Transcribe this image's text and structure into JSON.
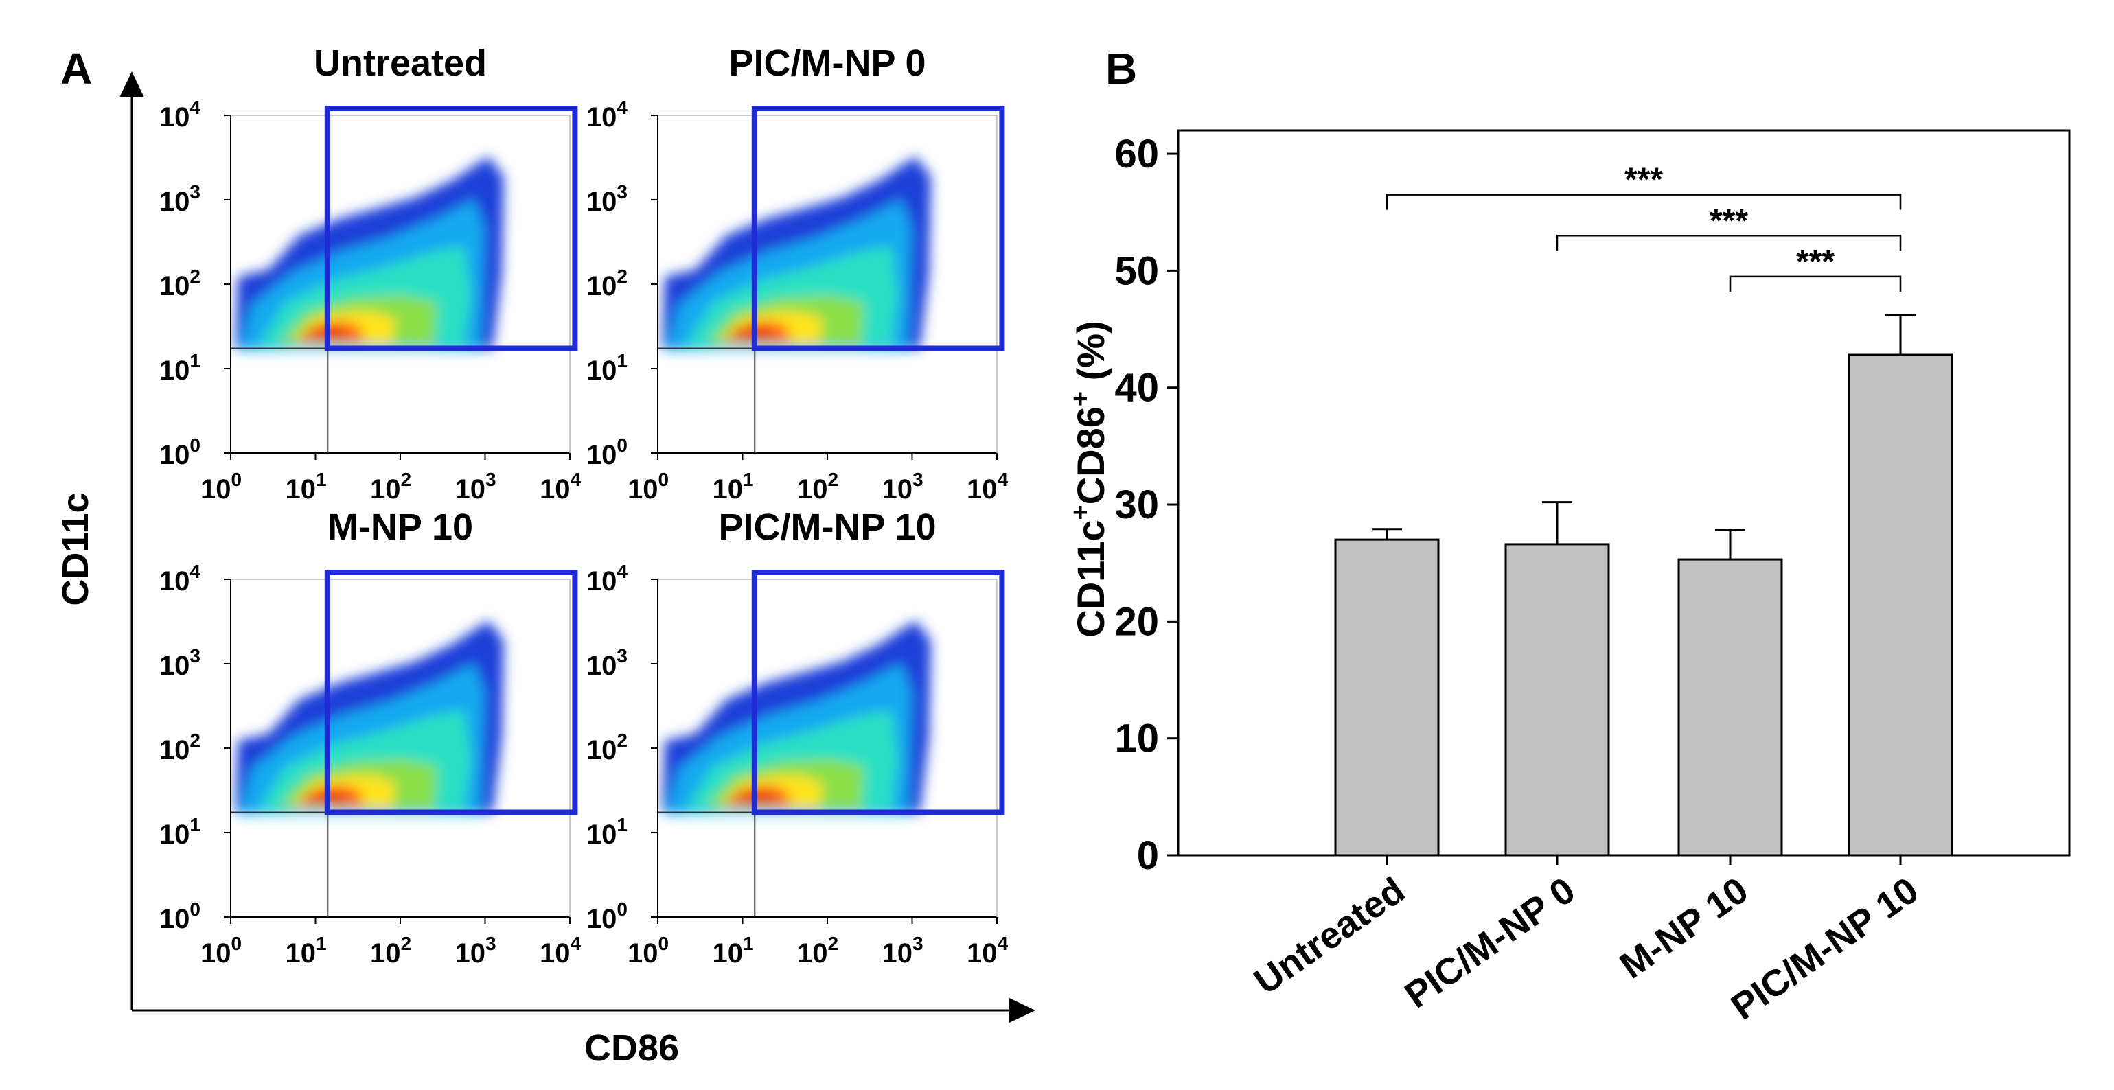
{
  "panel_labels": {
    "a": "A",
    "b": "B"
  },
  "panel_a": {
    "xlabel": "CD86",
    "ylabel": "CD11c",
    "tick_exponents": [
      "0",
      "1",
      "2",
      "3",
      "4"
    ],
    "tick_base": "10",
    "gate_color": "#1f2bd6",
    "subplots": [
      {
        "title": "Untreated"
      },
      {
        "title": "PIC/M-NP 0"
      },
      {
        "title": "M-NP 10"
      },
      {
        "title": "PIC/M-NP 10"
      }
    ]
  },
  "chart_data": {
    "type": "bar",
    "title": "",
    "xlabel": "",
    "ylabel_main": "CD11c",
    "ylabel_sup1": "+",
    "ylabel_mid": "CD86",
    "ylabel_sup2": "+",
    "ylabel_tail": " (%)",
    "categories": [
      "Untreated",
      "PIC/M-NP 0",
      "M-NP 10",
      "PIC/M-NP 10"
    ],
    "values": [
      27.0,
      26.6,
      25.3,
      42.8
    ],
    "errors": [
      0.9,
      3.6,
      2.5,
      3.4
    ],
    "ylim": [
      0,
      62
    ],
    "yticks": [
      "0",
      "10",
      "20",
      "30",
      "40",
      "50",
      "60"
    ],
    "bar_color": "#c0c0c0",
    "significance": [
      {
        "from": 0,
        "to": 3,
        "y": 56.5,
        "label": "***"
      },
      {
        "from": 1,
        "to": 3,
        "y": 53.0,
        "label": "***"
      },
      {
        "from": 2,
        "to": 3,
        "y": 49.5,
        "label": "***"
      }
    ]
  }
}
